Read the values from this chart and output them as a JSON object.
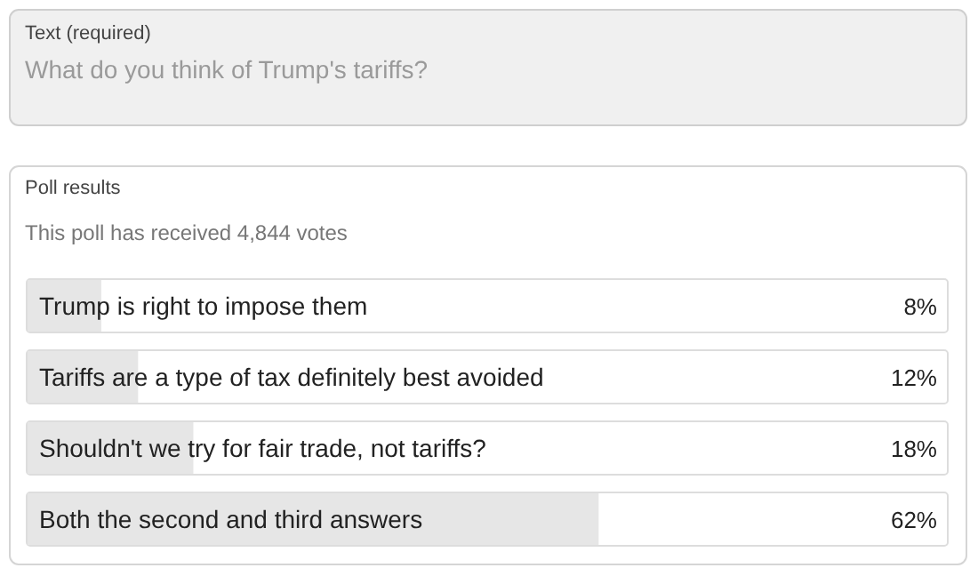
{
  "chart_data": {
    "type": "bar",
    "orientation": "horizontal",
    "title": "Poll results",
    "subtitle": "This poll has received 4,844 votes",
    "annotations": [
      "Text (required)",
      "What do you think of Trump's tariffs?"
    ],
    "categories": [
      "Trump is right to impose them",
      "Tariffs are a type of tax definitely best avoided",
      "Shouldn't we try for fair trade, not tariffs?",
      "Both the second and third answers"
    ],
    "values": [
      8,
      12,
      18,
      62
    ],
    "value_labels": [
      "8%",
      "12%",
      "18%",
      "62%"
    ],
    "color": "#e6e6e6"
  }
}
